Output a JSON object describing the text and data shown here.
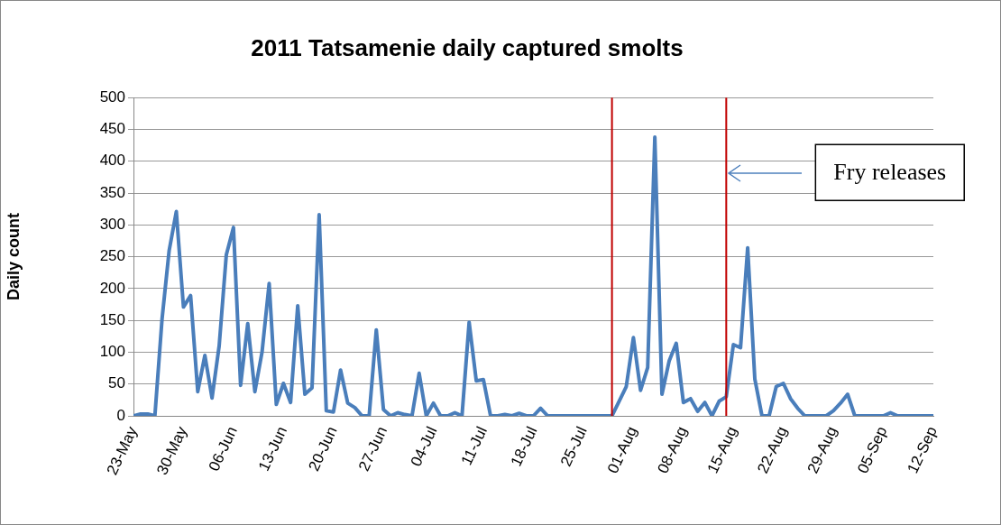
{
  "chart_data": {
    "type": "line",
    "title": "2011 Tatsamenie daily captured smolts",
    "ylabel": "Daily count",
    "x": [
      "2011-05-23",
      "2011-05-24",
      "2011-05-25",
      "2011-05-26",
      "2011-05-27",
      "2011-05-28",
      "2011-05-29",
      "2011-05-30",
      "2011-05-31",
      "2011-06-01",
      "2011-06-02",
      "2011-06-03",
      "2011-06-04",
      "2011-06-05",
      "2011-06-06",
      "2011-06-07",
      "2011-06-08",
      "2011-06-09",
      "2011-06-10",
      "2011-06-11",
      "2011-06-12",
      "2011-06-13",
      "2011-06-14",
      "2011-06-15",
      "2011-06-16",
      "2011-06-17",
      "2011-06-18",
      "2011-06-19",
      "2011-06-20",
      "2011-06-21",
      "2011-06-22",
      "2011-06-23",
      "2011-06-24",
      "2011-06-25",
      "2011-06-26",
      "2011-06-27",
      "2011-06-28",
      "2011-06-29",
      "2011-06-30",
      "2011-07-01",
      "2011-07-02",
      "2011-07-03",
      "2011-07-04",
      "2011-07-05",
      "2011-07-06",
      "2011-07-07",
      "2011-07-08",
      "2011-07-09",
      "2011-07-10",
      "2011-07-11",
      "2011-07-12",
      "2011-07-13",
      "2011-07-14",
      "2011-07-15",
      "2011-07-16",
      "2011-07-17",
      "2011-07-18",
      "2011-07-19",
      "2011-07-20",
      "2011-07-21",
      "2011-07-22",
      "2011-07-23",
      "2011-07-24",
      "2011-07-25",
      "2011-07-26",
      "2011-07-27",
      "2011-07-28",
      "2011-07-29",
      "2011-07-30",
      "2011-07-31",
      "2011-08-01",
      "2011-08-02",
      "2011-08-03",
      "2011-08-04",
      "2011-08-05",
      "2011-08-06",
      "2011-08-07",
      "2011-08-08",
      "2011-08-09",
      "2011-08-10",
      "2011-08-11",
      "2011-08-12",
      "2011-08-13",
      "2011-08-14",
      "2011-08-15",
      "2011-08-16",
      "2011-08-17",
      "2011-08-18",
      "2011-08-19",
      "2011-08-20",
      "2011-08-21",
      "2011-08-22",
      "2011-08-23",
      "2011-08-24",
      "2011-08-25",
      "2011-08-26",
      "2011-08-27",
      "2011-08-28",
      "2011-08-29",
      "2011-08-30",
      "2011-08-31",
      "2011-09-01",
      "2011-09-02",
      "2011-09-03",
      "2011-09-04",
      "2011-09-05",
      "2011-09-06",
      "2011-09-07",
      "2011-09-08",
      "2011-09-09",
      "2011-09-10",
      "2011-09-11",
      "2011-09-12"
    ],
    "values": [
      0,
      3,
      3,
      0,
      152,
      260,
      321,
      171,
      189,
      38,
      95,
      28,
      110,
      253,
      296,
      48,
      145,
      38,
      100,
      208,
      18,
      51,
      21,
      173,
      34,
      44,
      316,
      8,
      6,
      72,
      20,
      13,
      0,
      0,
      135,
      10,
      0,
      5,
      2,
      0,
      67,
      0,
      20,
      0,
      0,
      5,
      0,
      147,
      55,
      57,
      0,
      0,
      2,
      0,
      4,
      0,
      0,
      12,
      0,
      0,
      0,
      0,
      0,
      0,
      0,
      0,
      0,
      0,
      23,
      46,
      123,
      40,
      76,
      438,
      34,
      86,
      114,
      21,
      27,
      7,
      21,
      0,
      23,
      30,
      112,
      107,
      264,
      58,
      0,
      0,
      46,
      51,
      27,
      12,
      0,
      0,
      0,
      0,
      8,
      20,
      34,
      0,
      0,
      0,
      0,
      0,
      5,
      0,
      0,
      0,
      0,
      0,
      0
    ],
    "color": "#4a7ebb",
    "marker": "none",
    "xlim": [
      "2011-05-23",
      "2011-09-12"
    ],
    "xticks": [
      {
        "value": "2011-05-23",
        "label": "23-May"
      },
      {
        "value": "2011-05-30",
        "label": "30-May"
      },
      {
        "value": "2011-06-06",
        "label": "06-Jun"
      },
      {
        "value": "2011-06-13",
        "label": "13-Jun"
      },
      {
        "value": "2011-06-20",
        "label": "20-Jun"
      },
      {
        "value": "2011-06-27",
        "label": "27-Jun"
      },
      {
        "value": "2011-07-04",
        "label": "04-Jul"
      },
      {
        "value": "2011-07-11",
        "label": "11-Jul"
      },
      {
        "value": "2011-07-18",
        "label": "18-Jul"
      },
      {
        "value": "2011-07-25",
        "label": "25-Jul"
      },
      {
        "value": "2011-08-01",
        "label": "01-Aug"
      },
      {
        "value": "2011-08-08",
        "label": "08-Aug"
      },
      {
        "value": "2011-08-15",
        "label": "15-Aug"
      },
      {
        "value": "2011-08-22",
        "label": "22-Aug"
      },
      {
        "value": "2011-08-29",
        "label": "29-Aug"
      },
      {
        "value": "2011-09-05",
        "label": "05-Sep"
      },
      {
        "value": "2011-09-12",
        "label": "12-Sep"
      }
    ],
    "ylim": [
      0,
      500
    ],
    "yticks": [
      0,
      50,
      100,
      150,
      200,
      250,
      300,
      350,
      400,
      450,
      500
    ],
    "grid": "y",
    "ref_lines": [
      {
        "axis": "x",
        "value": "2011-07-29",
        "color": "#c00000"
      },
      {
        "axis": "x",
        "value": "2011-08-14",
        "color": "#c00000"
      }
    ],
    "annotations": [
      "Fry releases"
    ]
  }
}
